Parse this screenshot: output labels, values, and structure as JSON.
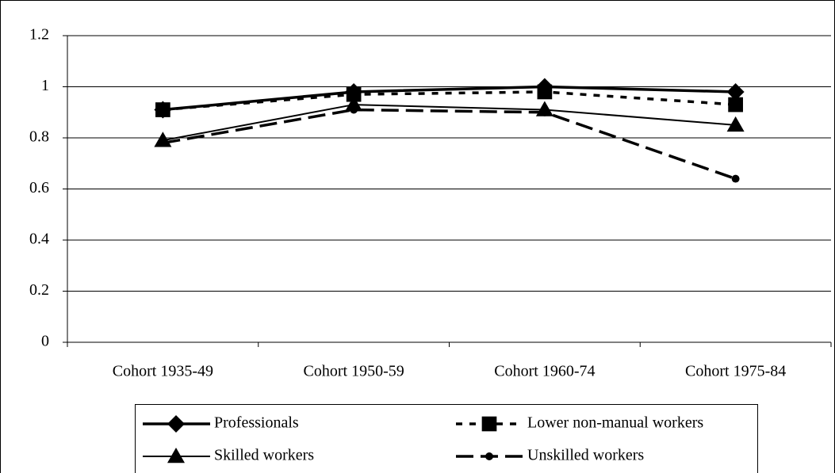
{
  "chart_data": {
    "type": "line",
    "categories": [
      "Cohort 1935-49",
      "Cohort 1950-59",
      "Cohort 1960-74",
      "Cohort 1975-84"
    ],
    "series": [
      {
        "name": "Professionals",
        "color": "#000000",
        "marker": "diamond",
        "line_style": "solid-thick",
        "values": [
          0.91,
          0.98,
          1.0,
          0.98
        ]
      },
      {
        "name": "Lower non-manual workers",
        "color": "#000000",
        "marker": "square",
        "line_style": "dotted",
        "values": [
          0.91,
          0.97,
          0.98,
          0.93
        ]
      },
      {
        "name": "Skilled workers",
        "color": "#000000",
        "marker": "triangle",
        "line_style": "solid-thin",
        "values": [
          0.79,
          0.93,
          0.91,
          0.85
        ]
      },
      {
        "name": "Unskilled workers",
        "color": "#000000",
        "marker": "circle",
        "line_style": "long-dash",
        "values": [
          0.78,
          0.91,
          0.9,
          0.64
        ]
      }
    ],
    "ylim": [
      0,
      1.2
    ],
    "yticks": [
      0,
      0.2,
      0.4,
      0.6,
      0.8,
      1,
      1.2
    ],
    "grid": true,
    "legend": "bottom"
  }
}
